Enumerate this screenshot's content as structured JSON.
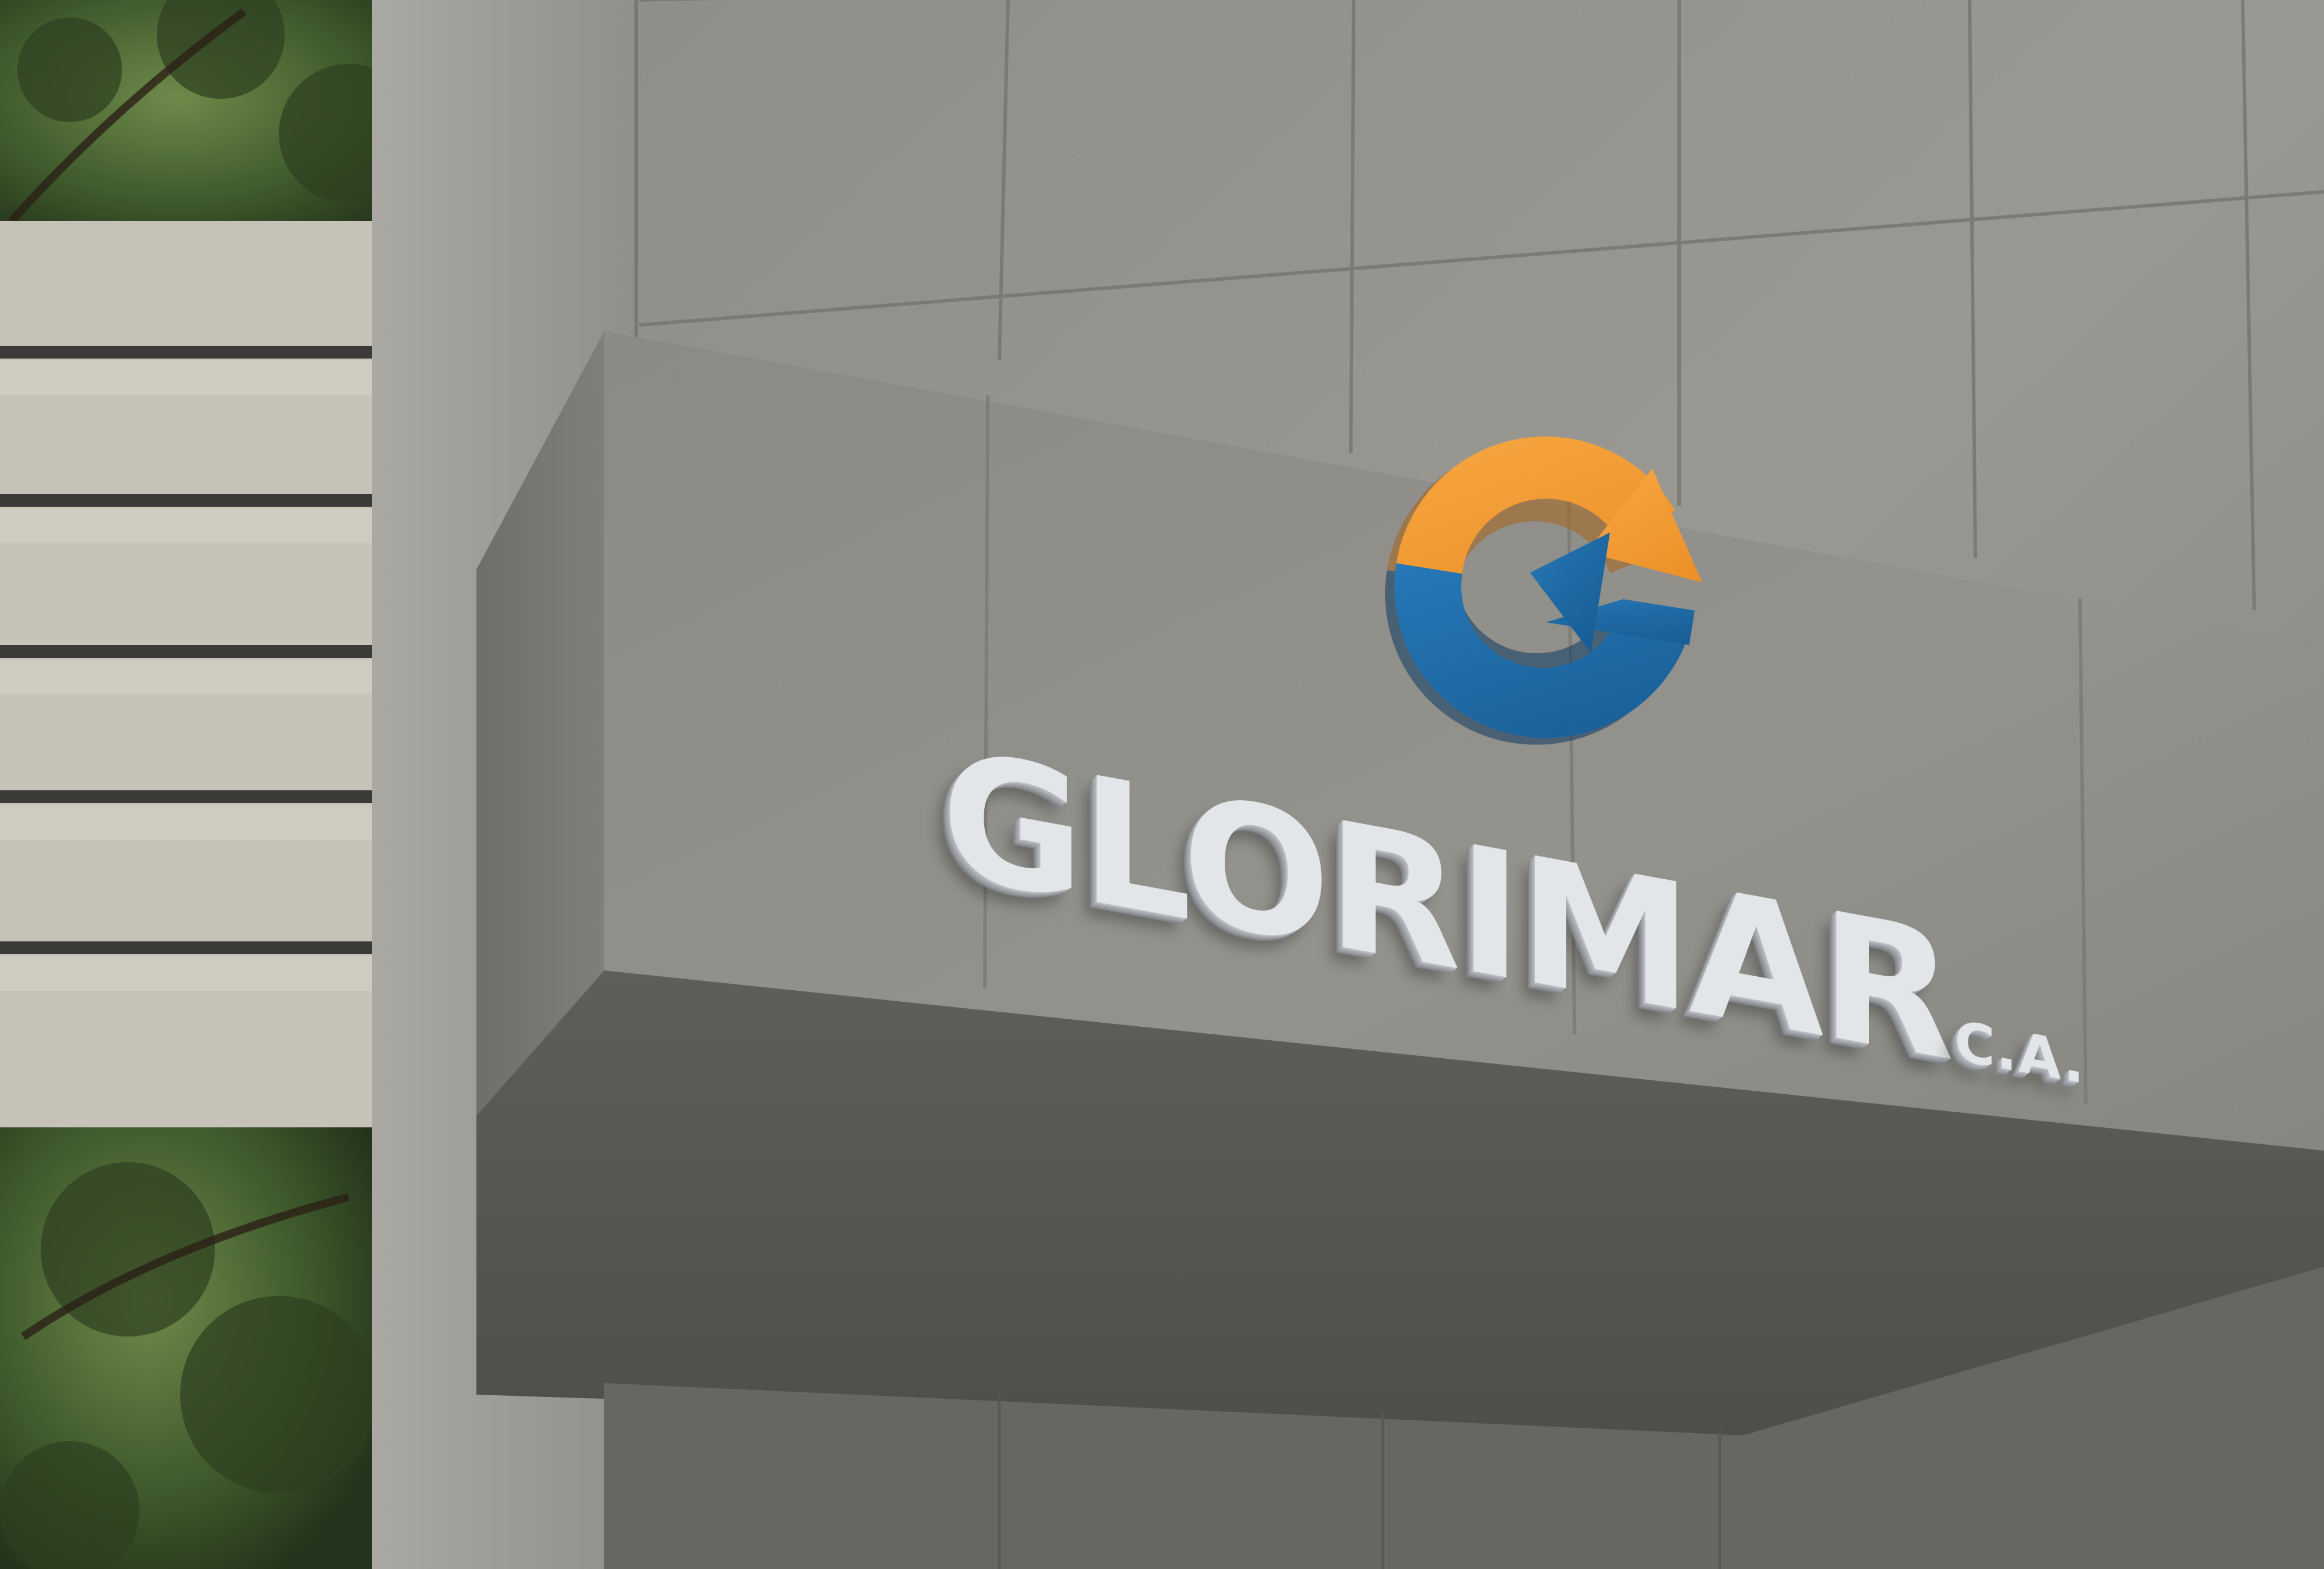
{
  "image": {
    "description_tags": [
      "building-facade",
      "concrete-canopy",
      "3d-logo-sign"
    ],
    "colors": {
      "concrete_light": "#9c9b96",
      "concrete_mid": "#86857f",
      "concrete_dark": "#5d5d59",
      "underside": "#55554f",
      "logo_orange": "#f39a34",
      "logo_blue": "#1f6aa5",
      "letters": "#e3e6e9",
      "foliage": "#3f5a2c"
    }
  },
  "sign": {
    "icon": "circular-arrow-g-logo-icon",
    "wordmark": "GLORIMAR",
    "suffix": "C.A."
  }
}
